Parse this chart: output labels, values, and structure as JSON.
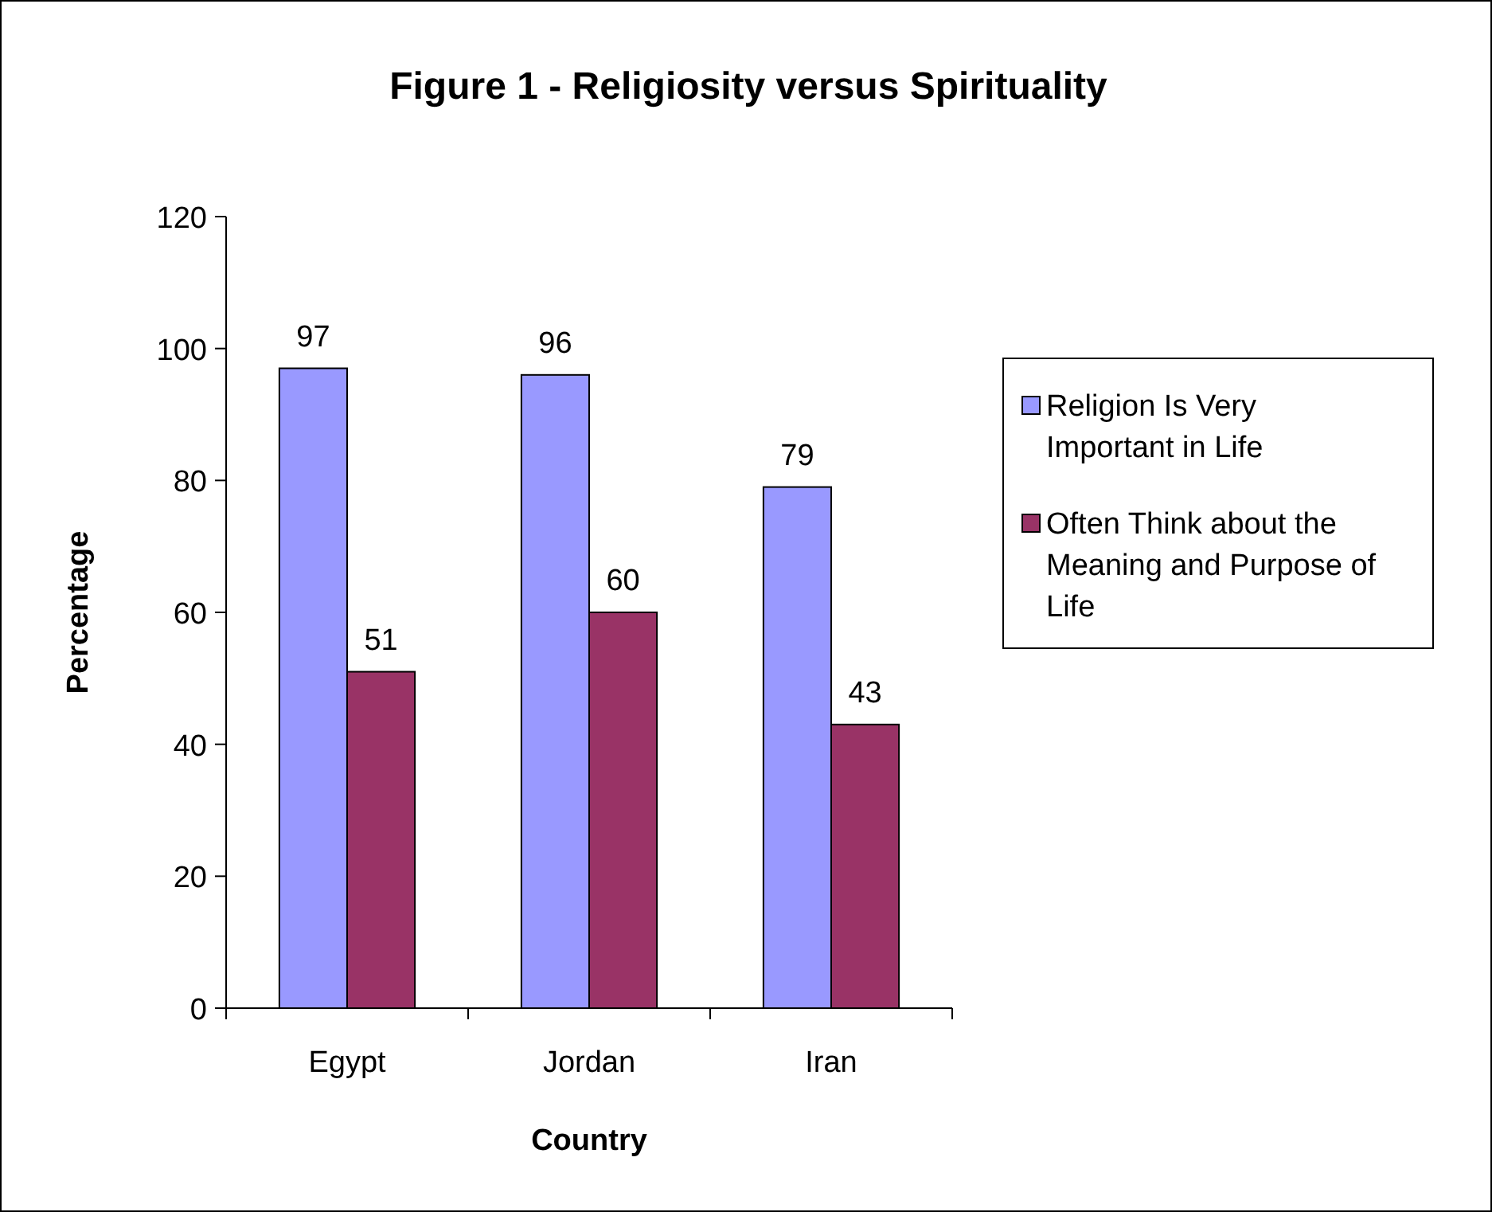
{
  "chart_data": {
    "type": "bar",
    "title": "Figure 1 - Religiosity versus Spirituality",
    "xlabel": "Country",
    "ylabel": "Percentage",
    "categories": [
      "Egypt",
      "Jordan",
      "Iran"
    ],
    "series": [
      {
        "name": "Religion Is Very Important in Life",
        "color": "#9999ff",
        "values": [
          97,
          96,
          79
        ]
      },
      {
        "name": "Often Think about the Meaning and Purpose of Life",
        "color": "#993366",
        "values": [
          51,
          60,
          43
        ]
      }
    ],
    "ylim": [
      0,
      120
    ],
    "yticks": [
      0,
      20,
      40,
      60,
      80,
      100,
      120
    ],
    "data_labels": true,
    "legend": "right",
    "grid": false
  }
}
